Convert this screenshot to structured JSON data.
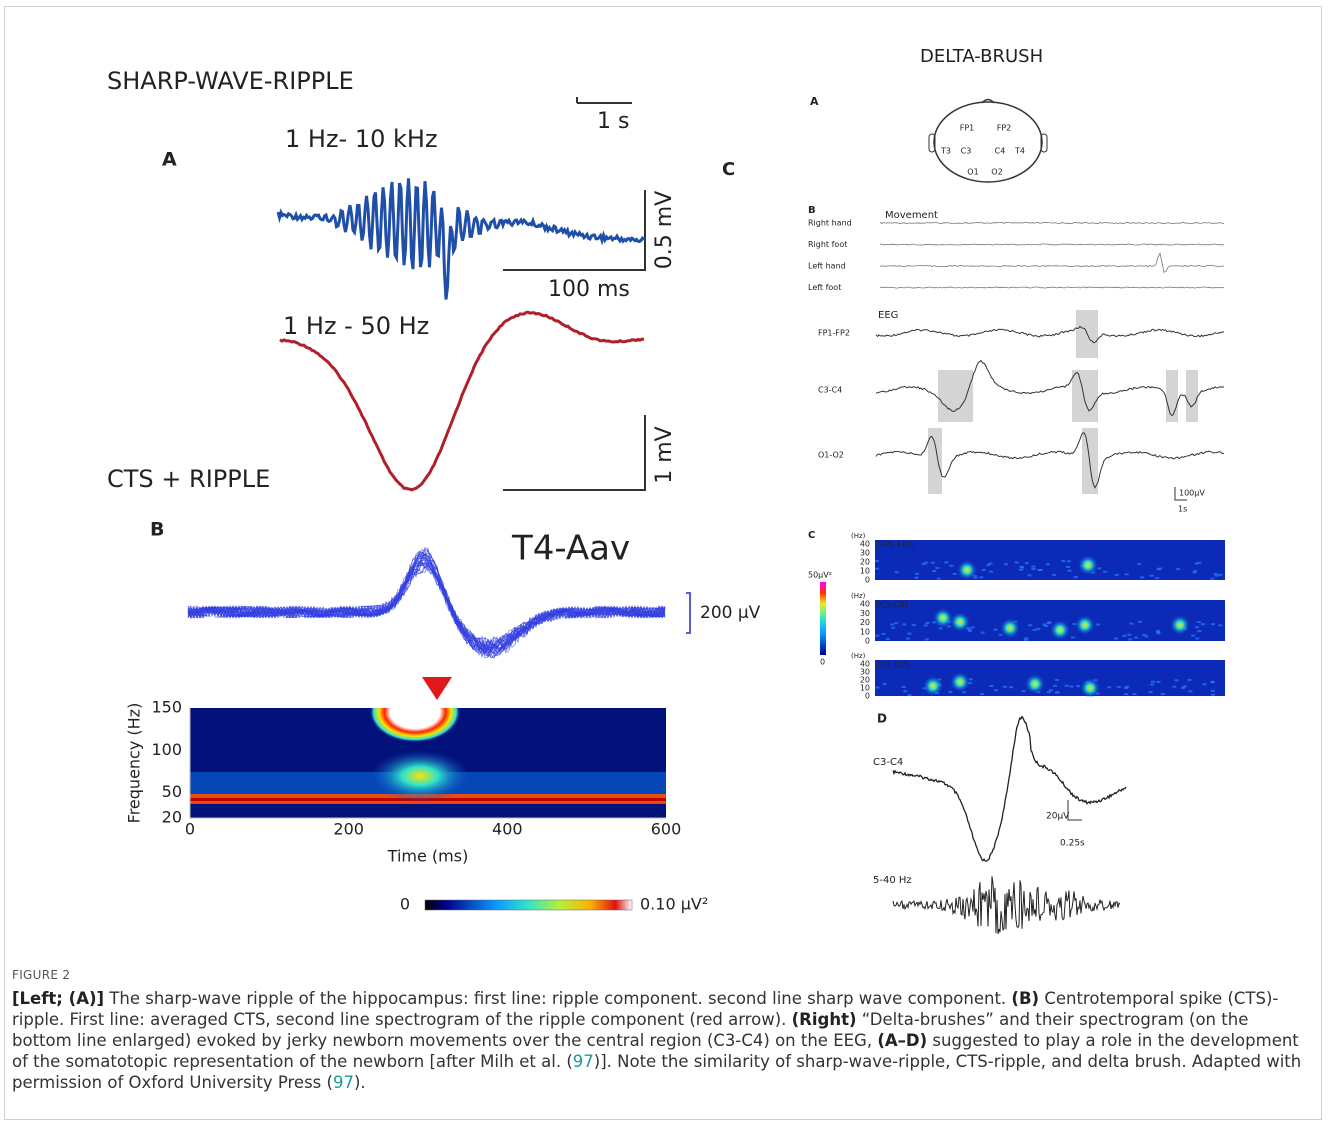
{
  "left": {
    "panel_a": {
      "title": "SHARP-WAVE-RIPPLE",
      "label": "A",
      "time_scale": "1 s",
      "ripple_band": "1 Hz- 10 kHz",
      "ripple_amp_scale": "0.5 mV",
      "ripple_time_scale": "100 ms",
      "sharp_band": "1 Hz - 50 Hz",
      "sharp_amp_scale": "1 mV"
    },
    "panel_b": {
      "title": "CTS + RIPPLE",
      "label": "B",
      "channel": "T4-Aav",
      "amp_scale": "200 µV",
      "y_label": "Frequency (Hz)",
      "y_ticks": [
        150,
        100,
        50,
        20
      ],
      "x_label": "Time (ms)",
      "x_ticks": [
        0,
        200,
        400,
        600
      ],
      "colorbar_min": 0,
      "colorbar_max": "0.10 µV²"
    }
  },
  "right": {
    "title": "DELTA-BRUSH",
    "label": "C",
    "panel_a": {
      "label": "A",
      "electrodes": [
        "FP1",
        "FP2",
        "T3",
        "C3",
        "C4",
        "T4",
        "O1",
        "O2"
      ]
    },
    "panel_b": {
      "label": "B",
      "movement": "Movement",
      "limbs": [
        "Right hand",
        "Right foot",
        "Left hand",
        "Left foot"
      ],
      "eeg": "EEG",
      "channels": [
        "FP1-FP2",
        "C3-C4",
        "O1-O2"
      ],
      "amp_scale": "100µV",
      "time_scale": "1s"
    },
    "panel_c": {
      "label": "C",
      "unit": "(Hz)",
      "ticks": [
        40,
        30,
        20,
        10,
        0
      ],
      "channels": [
        "(FP1-FP2)",
        "(C3-C4)",
        "(O1-O2)"
      ],
      "colorbar_max": "50µV²",
      "colorbar_min": 0
    },
    "panel_d": {
      "label": "D",
      "channel": "C3-C4",
      "amp_scale": "20µV",
      "time_scale": "0.25s",
      "band": "5-40 Hz"
    }
  },
  "caption": {
    "label": "FIGURE 2",
    "segments": [
      "[Left; (A)]",
      " The sharp-wave ripple of the hippocampus: first line: ripple component. second line sharp wave component. ",
      "(B)",
      " Centrotemporal spike (CTS)-ripple. First line: averaged CTS, second line spectrogram of the ripple component (red arrow). ",
      "(Right)",
      " “Delta-brushes” and their spectrogram (on the bottom line enlarged) evoked by jerky newborn movements over the central region (C3-C4) on the EEG, ",
      "(A–D)",
      " suggested to play a role in the development of the somatotopic representation of the newborn [after Milh et al. (",
      "97",
      ")]. Note the similarity of sharp-wave-ripple, CTS-ripple, and delta brush. Adapted with permission of Oxford University Press (",
      "97",
      ")."
    ]
  }
}
